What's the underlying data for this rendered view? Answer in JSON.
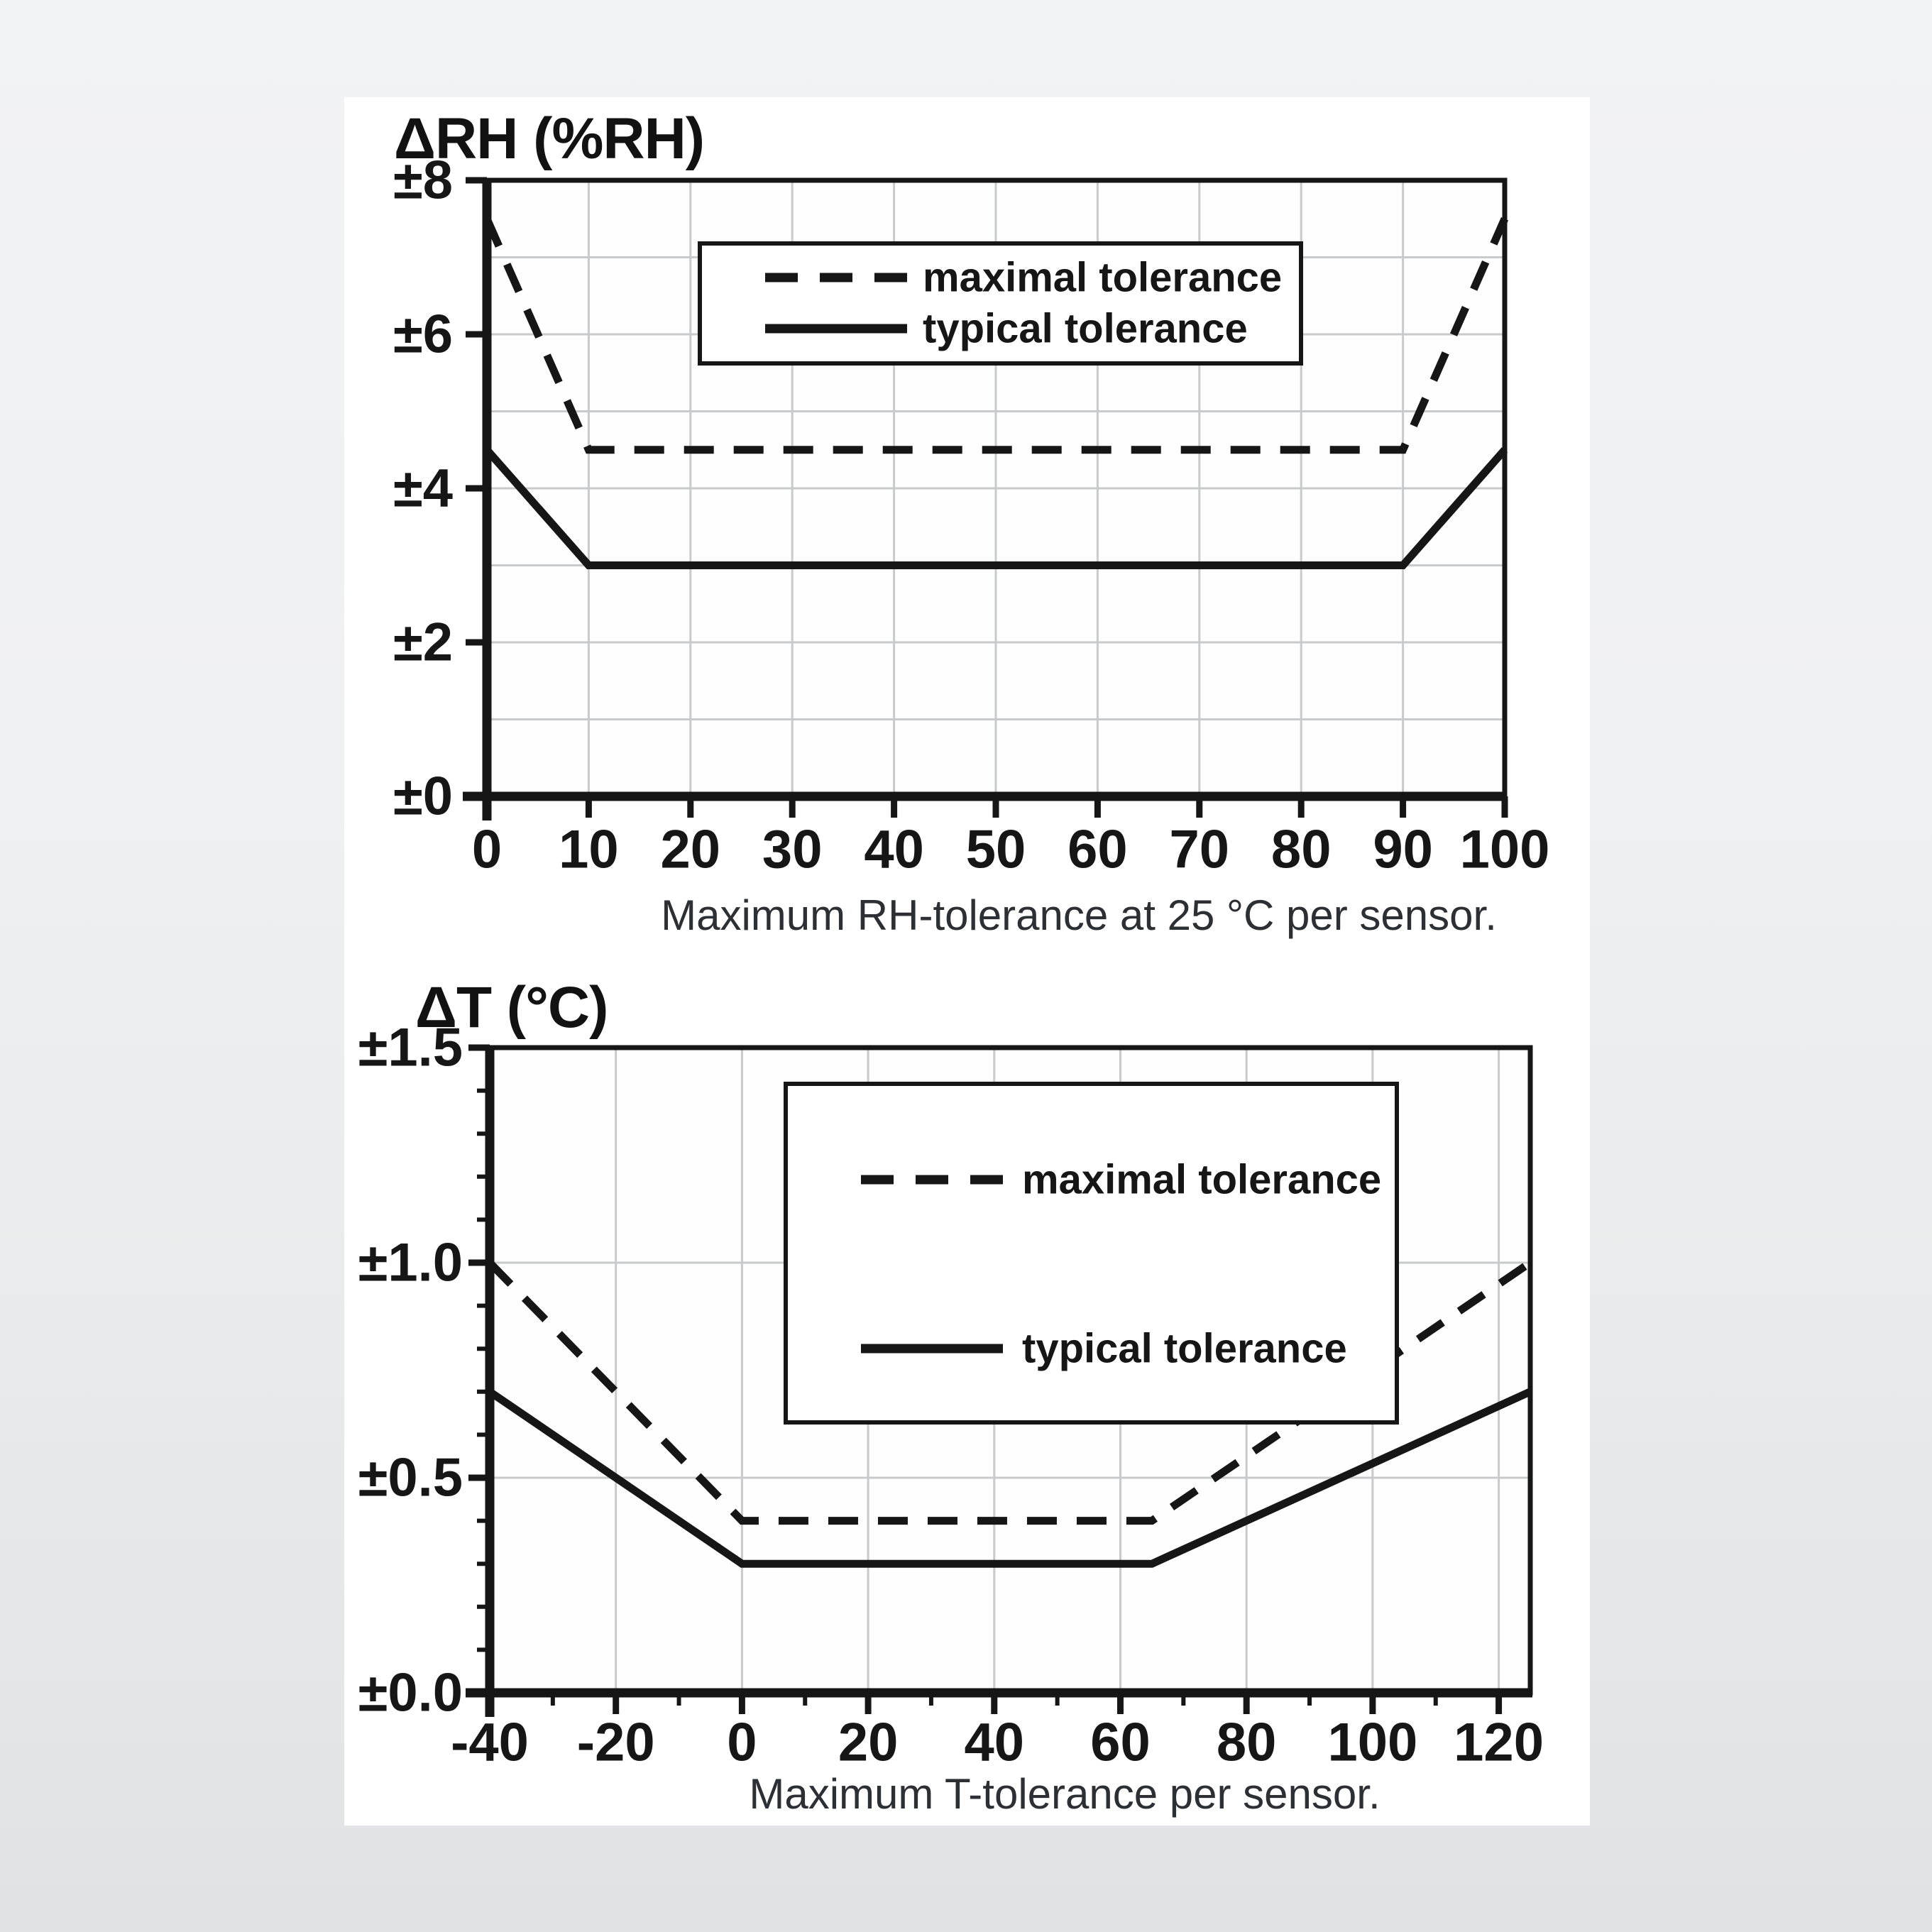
{
  "colors": {
    "line": "#161616",
    "grid": "#c8cacb",
    "plot_background": "#fefefe",
    "panel_background": "#ffffff",
    "caption_text": "#2c2f33",
    "page_background_top": "#f2f3f4",
    "page_background_bottom": "#e0e2e4"
  },
  "chart_data": [
    {
      "id": "rh",
      "type": "line",
      "title": "ΔRH (%RH)",
      "caption": "Maximum RH-tolerance at 25 °C per sensor.",
      "xlabel": "",
      "ylabel": "ΔRH (%RH)",
      "xlim": [
        0,
        100
      ],
      "ylim": [
        0,
        8
      ],
      "grid": "on",
      "x_axis": {
        "ticks_major": [
          0,
          10,
          20,
          30,
          40,
          50,
          60,
          70,
          80,
          90,
          100
        ],
        "tick_labels": [
          "0",
          "10",
          "20",
          "30",
          "40",
          "50",
          "60",
          "70",
          "80",
          "90",
          "100"
        ],
        "ticks_minor": [],
        "gridlines": [
          10,
          20,
          30,
          40,
          50,
          60,
          70,
          80,
          90
        ]
      },
      "y_axis": {
        "ticks_major": [
          0,
          2,
          4,
          6,
          8
        ],
        "tick_labels": [
          "±0",
          "±2",
          "±4",
          "±6",
          "±8"
        ],
        "ticks_minor": [],
        "gridlines": [
          1,
          2,
          3,
          4,
          5,
          6,
          7
        ]
      },
      "legend": {
        "position": "upper-center-inside",
        "entries": [
          {
            "label": "maximal tolerance",
            "style": "dashed"
          },
          {
            "label": "typical tolerance",
            "style": "solid"
          }
        ]
      },
      "series": [
        {
          "name": "maximal tolerance",
          "style": "dashed",
          "points": [
            [
              0,
              7.5
            ],
            [
              10,
              4.5
            ],
            [
              90,
              4.5
            ],
            [
              100,
              7.5
            ]
          ]
        },
        {
          "name": "typical tolerance",
          "style": "solid",
          "points": [
            [
              0,
              4.5
            ],
            [
              10,
              3.0
            ],
            [
              90,
              3.0
            ],
            [
              100,
              4.5
            ]
          ]
        }
      ]
    },
    {
      "id": "t",
      "type": "line",
      "title": "ΔT (°C)",
      "caption": "Maximum T-tolerance per sensor.",
      "xlabel": "",
      "ylabel": "ΔT (°C)",
      "xlim": [
        -40,
        125
      ],
      "ylim": [
        0,
        1.5
      ],
      "grid": "on",
      "x_axis": {
        "ticks_major": [
          -40,
          -20,
          0,
          20,
          40,
          60,
          80,
          100,
          120
        ],
        "tick_labels": [
          "-40",
          "-20",
          "0",
          "20",
          "40",
          "60",
          "80",
          "100",
          "120"
        ],
        "ticks_minor": [
          -30,
          -10,
          10,
          30,
          50,
          70,
          90,
          110
        ],
        "gridlines": [
          -20,
          0,
          20,
          40,
          60,
          80,
          100,
          120
        ]
      },
      "y_axis": {
        "ticks_major": [
          0,
          0.5,
          1.0,
          1.5
        ],
        "tick_labels": [
          "±0.0",
          "±0.5",
          "±1.0",
          "±1.5"
        ],
        "ticks_minor": [
          0.1,
          0.2,
          0.3,
          0.4,
          0.6,
          0.7,
          0.8,
          0.9,
          1.1,
          1.2,
          1.3,
          1.4
        ],
        "gridlines": [
          0.5,
          1.0
        ]
      },
      "legend": {
        "position": "upper-center-inside",
        "entries": [
          {
            "label": "maximal tolerance",
            "style": "dashed"
          },
          {
            "label": "typical tolerance",
            "style": "solid"
          }
        ]
      },
      "series": [
        {
          "name": "maximal tolerance",
          "style": "dashed",
          "points": [
            [
              -40,
              1.0
            ],
            [
              0,
              0.4
            ],
            [
              65,
              0.4
            ],
            [
              125,
              1.0
            ]
          ]
        },
        {
          "name": "typical tolerance",
          "style": "solid",
          "points": [
            [
              -40,
              0.7
            ],
            [
              0,
              0.3
            ],
            [
              65,
              0.3
            ],
            [
              125,
              0.7
            ]
          ]
        }
      ]
    }
  ]
}
